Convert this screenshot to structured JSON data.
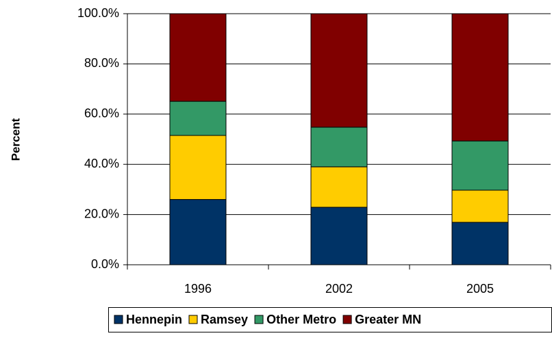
{
  "chart_data": {
    "type": "stacked_bar",
    "y_label": "Percent",
    "categories": [
      "1996",
      "2002",
      "2005"
    ],
    "series": [
      {
        "name": "Hennepin",
        "color": "#003366",
        "values": [
          26,
          22.9,
          16.9
        ]
      },
      {
        "name": "Ramsey",
        "color": "#ffcc00",
        "values": [
          25.5,
          16.1,
          12.8
        ]
      },
      {
        "name": "Other Metro",
        "color": "#339966",
        "values": [
          13.6,
          15.8,
          19.6
        ]
      },
      {
        "name": "Greater MN",
        "color": "#800000",
        "values": [
          34.9,
          45.2,
          50.7
        ]
      }
    ],
    "ylim": [
      0,
      100
    ],
    "yticks": [
      {
        "value": 0,
        "label": "0.0%"
      },
      {
        "value": 20,
        "label": "20.0%"
      },
      {
        "value": 40,
        "label": "40.0%"
      },
      {
        "value": 60,
        "label": "60.0%"
      },
      {
        "value": 80,
        "label": "80.0%"
      },
      {
        "value": 100,
        "label": "100.0%"
      }
    ],
    "grid": true,
    "legend": "bottom"
  }
}
